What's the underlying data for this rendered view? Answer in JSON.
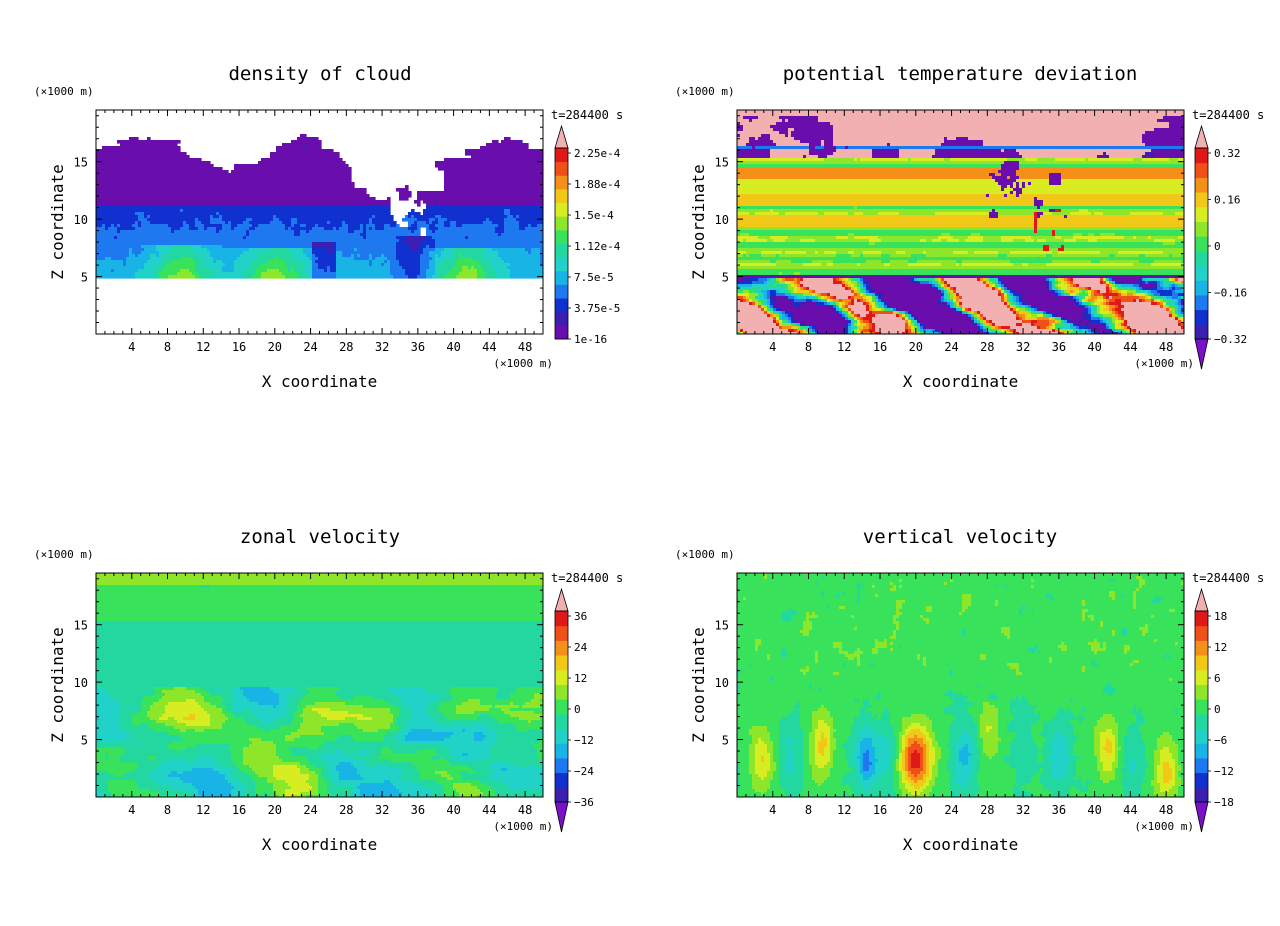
{
  "chart_data": [
    {
      "type": "heatmap",
      "title": "density of cloud",
      "xlabel": "X coordinate",
      "ylabel": "Z coordinate",
      "x_unit": "(×1000 m)",
      "y_unit": "(×1000 m)",
      "time_label": "t=284400 s",
      "xlim": [
        0,
        50
      ],
      "ylim": [
        0,
        19.5
      ],
      "x_ticks": [
        "4",
        "8",
        "12",
        "16",
        "20",
        "24",
        "28",
        "32",
        "36",
        "40",
        "44",
        "48"
      ],
      "y_ticks": [
        "5",
        "10",
        "15"
      ],
      "colorbar_labels": [
        "2.25e-4",
        "1.88e-4",
        "1.5e-4",
        "1.12e-4",
        "7.5e-5",
        "3.75e-5",
        "1e-16"
      ],
      "colorbar": {
        "min_label": "1e-16",
        "max_label": "2.25e-4",
        "extends": "max",
        "levels": 13
      },
      "field": "cloud"
    },
    {
      "type": "heatmap",
      "title": "potential temperature deviation",
      "xlabel": "X coordinate",
      "ylabel": "Z coordinate",
      "x_unit": "(×1000 m)",
      "y_unit": "(×1000 m)",
      "time_label": "t=284400 s",
      "xlim": [
        0,
        50
      ],
      "ylim": [
        0,
        19.5
      ],
      "x_ticks": [
        "4",
        "8",
        "12",
        "16",
        "20",
        "24",
        "28",
        "32",
        "36",
        "40",
        "44",
        "48"
      ],
      "y_ticks": [
        "5",
        "10",
        "15"
      ],
      "colorbar_labels": [
        "0.32",
        "0.16",
        "0",
        "−0.16",
        "−0.32"
      ],
      "colorbar": {
        "min": -0.4,
        "max": 0.4,
        "extends": "both",
        "levels": 11
      },
      "field": "theta"
    },
    {
      "type": "heatmap",
      "title": "zonal velocity",
      "xlabel": "X coordinate",
      "ylabel": "Z coordinate",
      "x_unit": "(×1000 m)",
      "y_unit": "(×1000 m)",
      "time_label": "t=284400 s",
      "xlim": [
        0,
        50
      ],
      "ylim": [
        0,
        19.5
      ],
      "x_ticks": [
        "4",
        "8",
        "12",
        "16",
        "20",
        "24",
        "28",
        "32",
        "36",
        "40",
        "44",
        "48"
      ],
      "y_ticks": [
        "5",
        "10",
        "15"
      ],
      "colorbar_labels": [
        "36",
        "24",
        "12",
        "0",
        "−12",
        "−24",
        "−36"
      ],
      "colorbar": {
        "min": -42,
        "max": 42,
        "extends": "both",
        "levels": 14
      },
      "field": "zonal"
    },
    {
      "type": "heatmap",
      "title": "vertical velocity",
      "xlabel": "X coordinate",
      "ylabel": "Z coordinate",
      "x_unit": "(×1000 m)",
      "y_unit": "(×1000 m)",
      "time_label": "t=284400 s",
      "xlim": [
        0,
        50
      ],
      "ylim": [
        0,
        19.5
      ],
      "x_ticks": [
        "4",
        "8",
        "12",
        "16",
        "20",
        "24",
        "28",
        "32",
        "36",
        "40",
        "44",
        "48"
      ],
      "y_ticks": [
        "5",
        "10",
        "15"
      ],
      "colorbar_labels": [
        "18",
        "12",
        "6",
        "0",
        "−6",
        "−12",
        "−18"
      ],
      "colorbar": {
        "min": -21,
        "max": 21,
        "extends": "both",
        "levels": 14
      },
      "field": "vertical"
    }
  ],
  "colormap": [
    "#6a0dad",
    "#3a1fb0",
    "#1030d0",
    "#1e78f0",
    "#19b4e6",
    "#20d2c8",
    "#22d8a0",
    "#38e25a",
    "#8ee62a",
    "#d8ec22",
    "#f2c818",
    "#f49018",
    "#f05018",
    "#e01818",
    "#f3b0b0"
  ]
}
